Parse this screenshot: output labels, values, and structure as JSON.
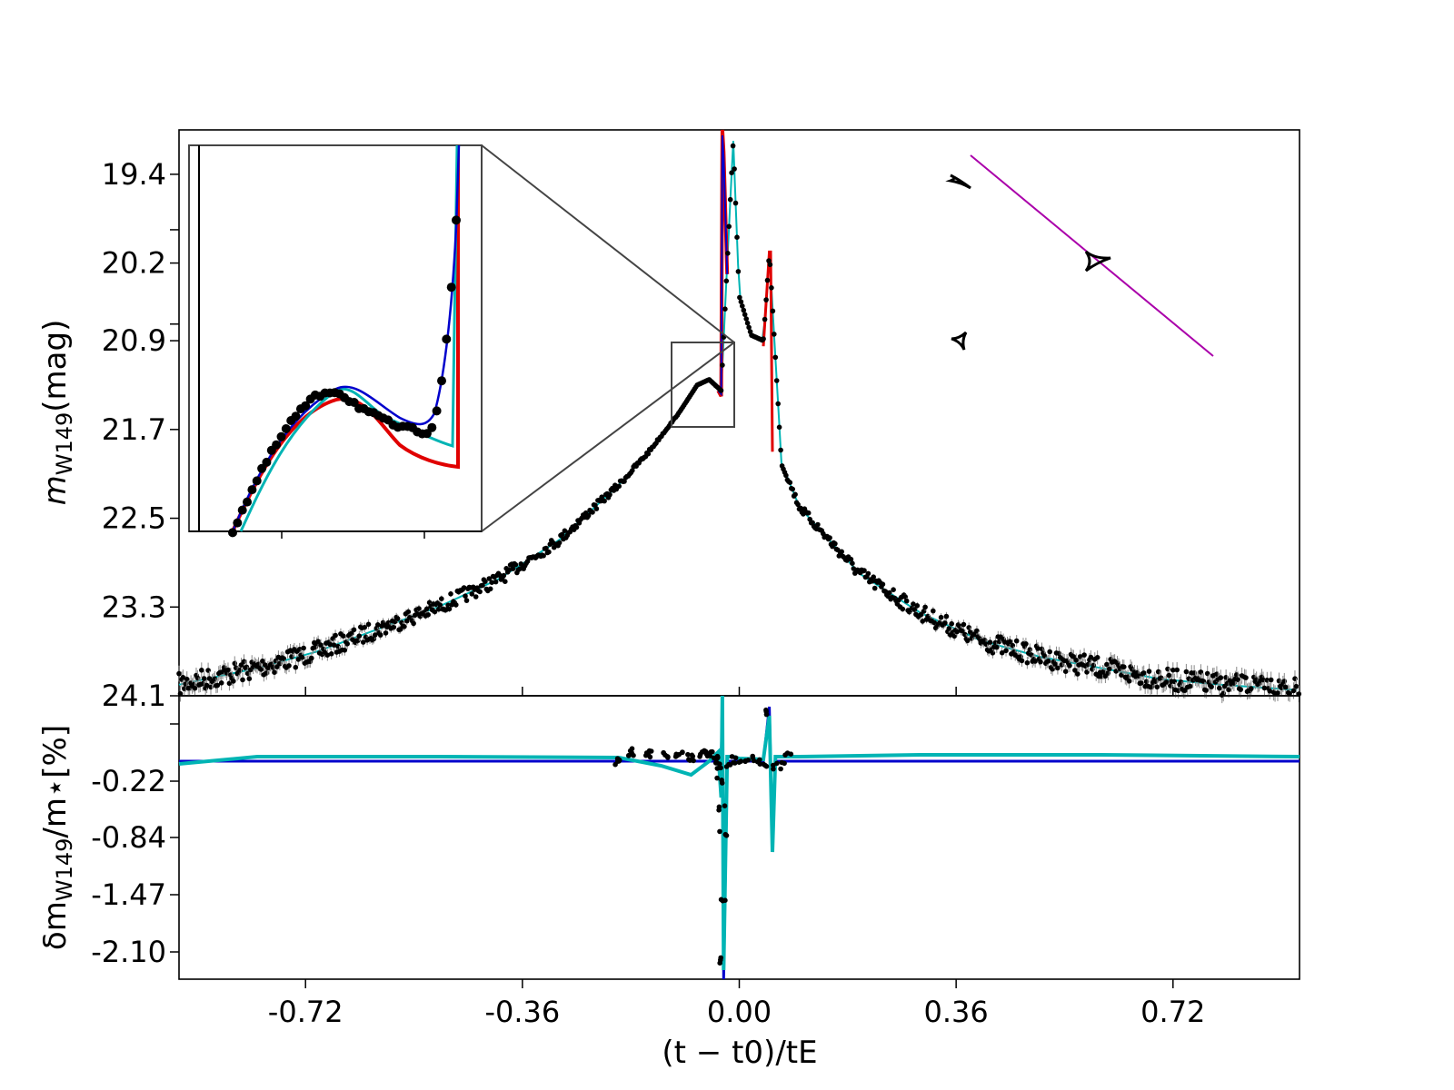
{
  "chart_data": [
    {
      "type": "scatter",
      "panel": "light curve",
      "ylabel": "m",
      "ylabel_sub": "W149",
      "ylabel_unit": "(mag)",
      "y_inverted": true,
      "xlim": [
        -0.93,
        0.93
      ],
      "ylim": [
        24.1,
        19.0
      ],
      "yticks": [
        "19.4",
        "20.2",
        "20.9",
        "21.7",
        "22.5",
        "23.3",
        "24.1"
      ],
      "ytick_values": [
        19.4,
        20.2,
        20.9,
        21.7,
        22.5,
        23.3,
        24.1
      ],
      "minor_yticks": [
        19.9,
        20.75
      ],
      "data_points_approx": {
        "x": [
          -0.93,
          -0.8,
          -0.7,
          -0.6,
          -0.5,
          -0.4,
          -0.3,
          -0.2,
          -0.15,
          -0.1,
          -0.07,
          -0.05,
          -0.03,
          -0.02,
          -0.01,
          0.0,
          0.02,
          0.04,
          0.05,
          0.07,
          0.1,
          0.15,
          0.2,
          0.3,
          0.4,
          0.5,
          0.6,
          0.7,
          0.8,
          0.93
        ],
        "y": [
          24.0,
          23.85,
          23.7,
          23.5,
          23.3,
          23.05,
          22.7,
          22.2,
          21.9,
          21.55,
          21.3,
          21.25,
          21.35,
          20.2,
          19.1,
          20.5,
          20.85,
          20.9,
          20.1,
          22.0,
          22.4,
          22.7,
          23.0,
          23.35,
          23.6,
          23.75,
          23.85,
          23.95,
          24.0,
          24.05
        ]
      },
      "series": [
        {
          "name": "",
          "color": "#e00000"
        },
        {
          "name": "",
          "color": "#0000cc"
        },
        {
          "name": "",
          "color": "#00b4b4"
        }
      ],
      "inset": {
        "zoom_x_range": [
          -0.13,
          -0.03
        ],
        "zoom_y_range": [
          21.6,
          20.95
        ]
      },
      "caustic_inset": {
        "trajectory_color": "#aa00aa",
        "caustic_color": "#000000"
      }
    },
    {
      "type": "line",
      "panel": "residuals",
      "ylabel": "δm",
      "ylabel_sub": "W149",
      "ylabel_unit": "/m⋆[%]",
      "xlabel": "(t − t0)/tE",
      "xlim": [
        -0.93,
        0.93
      ],
      "ylim": [
        -2.4,
        0.72
      ],
      "yticks": [
        "-0.22",
        "-0.84",
        "-1.47",
        "-2.10"
      ],
      "ytick_values": [
        -0.22,
        -0.84,
        -1.47,
        -2.1
      ],
      "minor_ytick_values": [
        0.41
      ],
      "xticks": [
        "-0.72",
        "-0.36",
        "0.00",
        "0.36",
        "0.72"
      ],
      "xtick_values": [
        -0.72,
        -0.36,
        0.0,
        0.36,
        0.72
      ],
      "series": [
        {
          "name": "",
          "color": "#0000cc",
          "x": [
            -0.93,
            -0.05,
            -0.03,
            -0.028,
            -0.026,
            -0.02,
            0.0,
            0.04,
            0.05,
            0.055,
            0.06,
            0.93
          ],
          "y": [
            0.0,
            0.0,
            0.0,
            2.0,
            -2.4,
            0.0,
            0.0,
            0.0,
            0.6,
            -0.9,
            0.0,
            0.0
          ]
        },
        {
          "name": "",
          "color": "#00b4b4",
          "x": [
            -0.93,
            -0.8,
            -0.5,
            -0.2,
            -0.13,
            -0.08,
            -0.05,
            -0.035,
            -0.03,
            -0.028,
            -0.026,
            -0.02,
            -0.01,
            0.0,
            0.04,
            0.05,
            0.055,
            0.06,
            0.1,
            0.3,
            0.6,
            0.93
          ],
          "y": [
            -0.03,
            0.05,
            0.05,
            0.04,
            -0.05,
            -0.15,
            0.0,
            0.1,
            -0.4,
            1.5,
            -2.3,
            0.05,
            0.05,
            0.03,
            0.02,
            0.5,
            -1.0,
            0.05,
            0.05,
            0.07,
            0.07,
            0.05
          ]
        }
      ],
      "residual_points_approx": {
        "x": [
          -0.2,
          -0.18,
          -0.15,
          -0.12,
          -0.1,
          -0.08,
          -0.06,
          -0.05,
          -0.04,
          -0.035,
          -0.032,
          -0.03,
          -0.029,
          -0.028,
          -0.027,
          -0.02,
          -0.01,
          0.0,
          0.01,
          0.02,
          0.03,
          0.04,
          0.05,
          0.06,
          0.07,
          0.08
        ],
        "y": [
          0.0,
          0.1,
          0.08,
          0.06,
          0.07,
          0.04,
          0.08,
          0.09,
          0.02,
          -0.05,
          -0.2,
          -0.5,
          -1.5,
          -2.2,
          -0.8,
          -0.05,
          0.02,
          0.0,
          -0.01,
          0.02,
          0.0,
          -0.03,
          0.55,
          -0.05,
          -0.05,
          0.05
        ]
      }
    }
  ]
}
